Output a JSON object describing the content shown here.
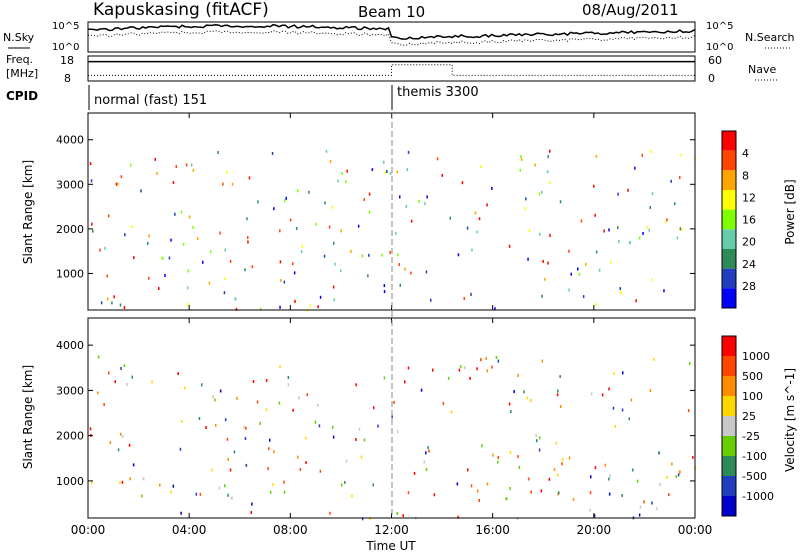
{
  "header": {
    "station": "Kapuskasing (fitACF)",
    "beam": "Beam 10",
    "date": "08/Aug/2011"
  },
  "colors": {
    "power_scale": [
      "#0000ff",
      "#1f3fbf",
      "#2e8b57",
      "#66cdaa",
      "#7fff00",
      "#ffff00",
      "#ffa500",
      "#ff4500",
      "#ff0000"
    ],
    "velocity_scale": [
      "#0000cc",
      "#1f3fbf",
      "#2e8b57",
      "#66cd00",
      "#c8c8c8",
      "#ffd700",
      "#ff8c00",
      "#ff4500",
      "#ff0000"
    ]
  },
  "chart_data": [
    {
      "type": "line",
      "panel": "noise",
      "left_labels": [
        "N.Sky"
      ],
      "right_labels": [
        "N.Search"
      ],
      "left_ticks": [
        "10^5",
        "10^0"
      ],
      "right_ticks": [
        "10^5",
        "10^0"
      ]
    },
    {
      "type": "line",
      "panel": "frequency",
      "left_labels": [
        "Freq.",
        "[MHz]"
      ],
      "right_labels": [
        "Nave"
      ],
      "left_ticks": [
        "18",
        "8"
      ],
      "right_ticks": [
        "60",
        "0"
      ],
      "frequency_step": {
        "x": [
          0,
          12,
          14.4,
          24
        ],
        "values": [
          16,
          16,
          16,
          16
        ]
      },
      "nave_step": {
        "x": [
          0,
          12,
          12,
          14.4,
          14.4,
          24
        ],
        "values": [
          12,
          12,
          40,
          40,
          12,
          12
        ]
      }
    },
    {
      "type": "table",
      "panel": "cpid",
      "label": "CPID",
      "segments": [
        {
          "start": 0,
          "end": 12,
          "name": "normal (fast) 151"
        },
        {
          "start": 12,
          "end": 24,
          "name": "themis 3300"
        }
      ]
    },
    {
      "type": "heatmap",
      "panel": "power",
      "ylabel": "Slant Range [km]",
      "xlim": [
        0,
        24
      ],
      "ylim": [
        180,
        4600
      ],
      "yticks": [
        1000,
        2000,
        3000,
        4000
      ],
      "colorbar": {
        "label": "Power [dB]",
        "ticks": [
          4,
          8,
          12,
          16,
          20,
          24,
          28
        ],
        "range": [
          0,
          30
        ]
      },
      "echo_regions": [
        {
          "t0": 0.0,
          "t1": 1.6,
          "r0": 1100,
          "r1": 1700,
          "level": 0.45
        },
        {
          "t0": 1.2,
          "t1": 3.4,
          "r0": 900,
          "r1": 2000,
          "level": 0.3
        },
        {
          "t0": 3.4,
          "t1": 5.2,
          "r0": 2200,
          "r1": 2800,
          "level": 0.25
        },
        {
          "t0": 4.0,
          "t1": 8.2,
          "r0": 650,
          "r1": 1100,
          "level": 0.5
        },
        {
          "t0": 5.6,
          "t1": 7.6,
          "r0": 2300,
          "r1": 3000,
          "level": 0.2
        },
        {
          "t0": 9.8,
          "t1": 11.0,
          "r0": 1900,
          "r1": 3300,
          "level": 0.25
        },
        {
          "t0": 14.8,
          "t1": 15.4,
          "r0": 1300,
          "r1": 1700,
          "level": 0.45
        },
        {
          "t0": 21.2,
          "t1": 24.0,
          "r0": 1100,
          "r1": 2100,
          "level": 0.5
        },
        {
          "t0": 0.0,
          "t1": 24.0,
          "r0": 180,
          "r1": 700,
          "level": 0.6
        }
      ]
    },
    {
      "type": "heatmap",
      "panel": "velocity",
      "ylabel": "Slant Range [km]",
      "xlabel": "Time UT",
      "xlim": [
        0,
        24
      ],
      "ylim": [
        180,
        4600
      ],
      "yticks": [
        1000,
        2000,
        3000,
        4000
      ],
      "xticks": [
        "00:00",
        "04:00",
        "08:00",
        "12:00",
        "16:00",
        "20:00",
        "00:00"
      ],
      "colorbar": {
        "label": "Velocity [m s^-1]",
        "ticks": [
          1000,
          500,
          100,
          25,
          -25,
          -100,
          -500,
          -1000
        ]
      },
      "echo_regions": [
        {
          "t0": 0.0,
          "t1": 1.6,
          "r0": 1100,
          "r1": 1700,
          "level": 0.5
        },
        {
          "t0": 1.2,
          "t1": 3.4,
          "r0": 900,
          "r1": 2000,
          "level": 0.5
        },
        {
          "t0": 3.4,
          "t1": 5.2,
          "r0": 2200,
          "r1": 2800,
          "level": 0.5
        },
        {
          "t0": 4.0,
          "t1": 8.2,
          "r0": 650,
          "r1": 1100,
          "level": 0.45
        },
        {
          "t0": 5.6,
          "t1": 7.6,
          "r0": 2300,
          "r1": 3000,
          "level": 0.5
        },
        {
          "t0": 9.8,
          "t1": 11.0,
          "r0": 1900,
          "r1": 3300,
          "level": 0.5
        },
        {
          "t0": 14.8,
          "t1": 15.4,
          "r0": 1300,
          "r1": 1700,
          "level": 0.5
        },
        {
          "t0": 21.2,
          "t1": 24.0,
          "r0": 1100,
          "r1": 2100,
          "level": 0.5
        },
        {
          "t0": 0.0,
          "t1": 24.0,
          "r0": 180,
          "r1": 700,
          "level": 0.6
        }
      ]
    }
  ]
}
